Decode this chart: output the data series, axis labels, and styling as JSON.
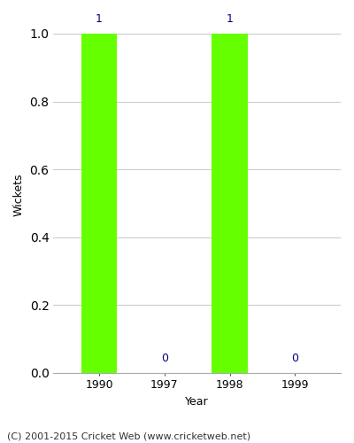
{
  "categories": [
    "1990",
    "1997",
    "1998",
    "1999"
  ],
  "values": [
    1,
    0,
    1,
    0
  ],
  "bar_color": "#66ff00",
  "bar_edge_color": "#66ff00",
  "label_color": "#000080",
  "ylabel": "Wickets",
  "xlabel": "Year",
  "ylim": [
    0,
    1.05
  ],
  "yticks": [
    0.0,
    0.2,
    0.4,
    0.6,
    0.8,
    1.0
  ],
  "grid_color": "#cccccc",
  "background_color": "#ffffff",
  "bar_width": 0.55,
  "annotation_fontsize": 9,
  "axis_label_fontsize": 9,
  "tick_fontsize": 9,
  "footer": "(C) 2001-2015 Cricket Web (www.cricketweb.net)",
  "footer_fontsize": 8
}
